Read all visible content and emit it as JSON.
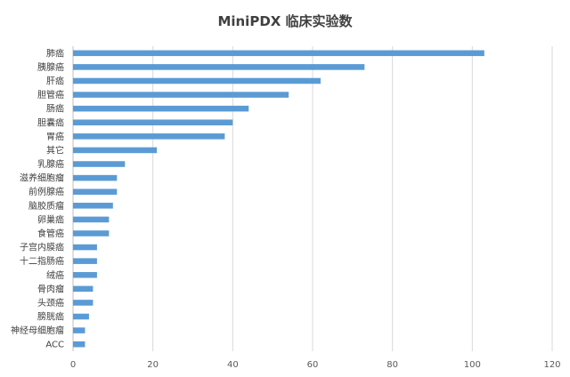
{
  "chart_data": {
    "type": "bar",
    "orientation": "horizontal",
    "title": "MiniPDX 临床实验数",
    "categories": [
      "肺癌",
      "胰腺癌",
      "肝癌",
      "胆管癌",
      "肠癌",
      "胆囊癌",
      "胃癌",
      "其它",
      "乳腺癌",
      "滋养细胞瘤",
      "前例腺癌",
      "脑胶质瘤",
      "卵巢癌",
      "食管癌",
      "子宫内膜癌",
      "十二指肠癌",
      "绒癌",
      "骨肉瘤",
      "头颈癌",
      "膀胱癌",
      "神经母细胞瘤",
      "ACC"
    ],
    "values": [
      103,
      73,
      62,
      54,
      44,
      40,
      38,
      21,
      13,
      11,
      11,
      10,
      9,
      9,
      6,
      6,
      6,
      5,
      5,
      4,
      3,
      3
    ],
    "xlim": [
      0,
      120
    ],
    "xticks": [
      0,
      20,
      40,
      60,
      80,
      100,
      120
    ],
    "grid": true,
    "legend": "none",
    "bar_color": "#5b9bd5"
  }
}
